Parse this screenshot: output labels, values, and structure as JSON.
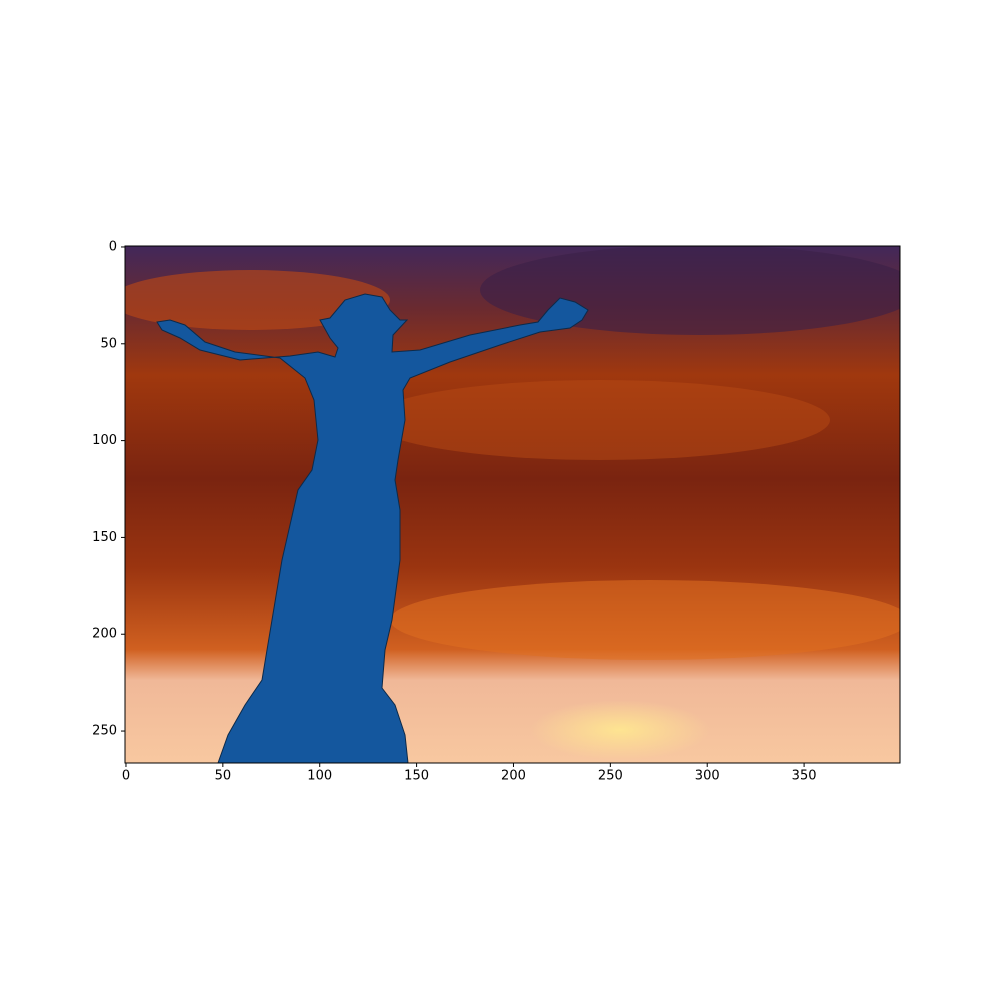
{
  "chart_data": {
    "type": "image",
    "xlim": [
      -0.5,
      399.5
    ],
    "ylim": [
      266.5,
      -0.5
    ],
    "xticks": [
      0,
      50,
      100,
      150,
      200,
      250,
      300,
      350
    ],
    "yticks": [
      0,
      50,
      100,
      150,
      200,
      250
    ]
  }
}
